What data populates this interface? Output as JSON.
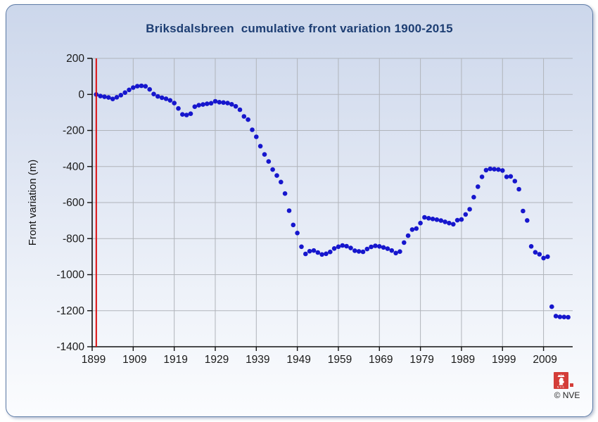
{
  "card": {
    "copyright": "© NVE",
    "logo_text": "NVE"
  },
  "chart_data": {
    "type": "scatter",
    "title": "Briksdalsbreen  cumulative front variation 1900-2015",
    "xlabel": "",
    "ylabel": "Front variation (m)",
    "xlim": [
      1899,
      2016.1
    ],
    "ylim": [
      -1400,
      200
    ],
    "x_ticks": [
      1899,
      1909,
      1919,
      1929,
      1939,
      1949,
      1959,
      1969,
      1979,
      1989,
      1999,
      2009
    ],
    "y_ticks": [
      200,
      0,
      -200,
      -400,
      -600,
      -800,
      -1000,
      -1200,
      -1400
    ],
    "grid": true,
    "legend": "none",
    "marker_color": "#1616cd",
    "grid_color": "#b0b4ba",
    "axis_color": "#111111",
    "red_line_color": "#dd0f0f",
    "red_line_year": 1900,
    "series": [
      {
        "name": "cumulative front variation",
        "x": [
          1900,
          1901,
          1902,
          1903,
          1904,
          1905,
          1906,
          1907,
          1908,
          1909,
          1910,
          1911,
          1912,
          1913,
          1914,
          1915,
          1916,
          1917,
          1918,
          1919,
          1920,
          1921,
          1922,
          1923,
          1924,
          1925,
          1926,
          1927,
          1928,
          1929,
          1930,
          1931,
          1932,
          1933,
          1934,
          1935,
          1936,
          1937,
          1938,
          1939,
          1940,
          1941,
          1942,
          1943,
          1944,
          1945,
          1946,
          1947,
          1948,
          1949,
          1950,
          1951,
          1952,
          1953,
          1954,
          1955,
          1956,
          1957,
          1958,
          1959,
          1960,
          1961,
          1962,
          1963,
          1964,
          1965,
          1966,
          1967,
          1968,
          1969,
          1970,
          1971,
          1972,
          1973,
          1974,
          1975,
          1976,
          1977,
          1978,
          1979,
          1980,
          1981,
          1982,
          1983,
          1984,
          1985,
          1986,
          1987,
          1988,
          1989,
          1990,
          1991,
          1992,
          1993,
          1994,
          1995,
          1996,
          1997,
          1998,
          1999,
          2000,
          2001,
          2002,
          2003,
          2004,
          2005,
          2006,
          2007,
          2008,
          2009,
          2010,
          2011,
          2012,
          2013,
          2014,
          2015
        ],
        "y": [
          0,
          -9,
          -13,
          -17,
          -25,
          -16,
          -4,
          10,
          25,
          38,
          46,
          48,
          45,
          28,
          2,
          -11,
          -18,
          -24,
          -33,
          -48,
          -78,
          -111,
          -114,
          -107,
          -68,
          -60,
          -56,
          -52,
          -49,
          -38,
          -43,
          -45,
          -48,
          -55,
          -66,
          -85,
          -122,
          -140,
          -196,
          -235,
          -287,
          -333,
          -372,
          -417,
          -450,
          -486,
          -550,
          -645,
          -724,
          -769,
          -845,
          -885,
          -870,
          -866,
          -877,
          -888,
          -884,
          -874,
          -855,
          -845,
          -838,
          -842,
          -852,
          -867,
          -871,
          -873,
          -858,
          -846,
          -840,
          -843,
          -849,
          -856,
          -866,
          -880,
          -872,
          -822,
          -784,
          -750,
          -744,
          -714,
          -682,
          -687,
          -691,
          -695,
          -700,
          -707,
          -714,
          -720,
          -698,
          -694,
          -666,
          -637,
          -570,
          -512,
          -457,
          -420,
          -413,
          -415,
          -417,
          -422,
          -457,
          -455,
          -481,
          -526,
          -647,
          -699,
          -843,
          -876,
          -887,
          -908,
          -900,
          -1178,
          -1230,
          -1234,
          -1235,
          -1236
        ]
      }
    ]
  }
}
